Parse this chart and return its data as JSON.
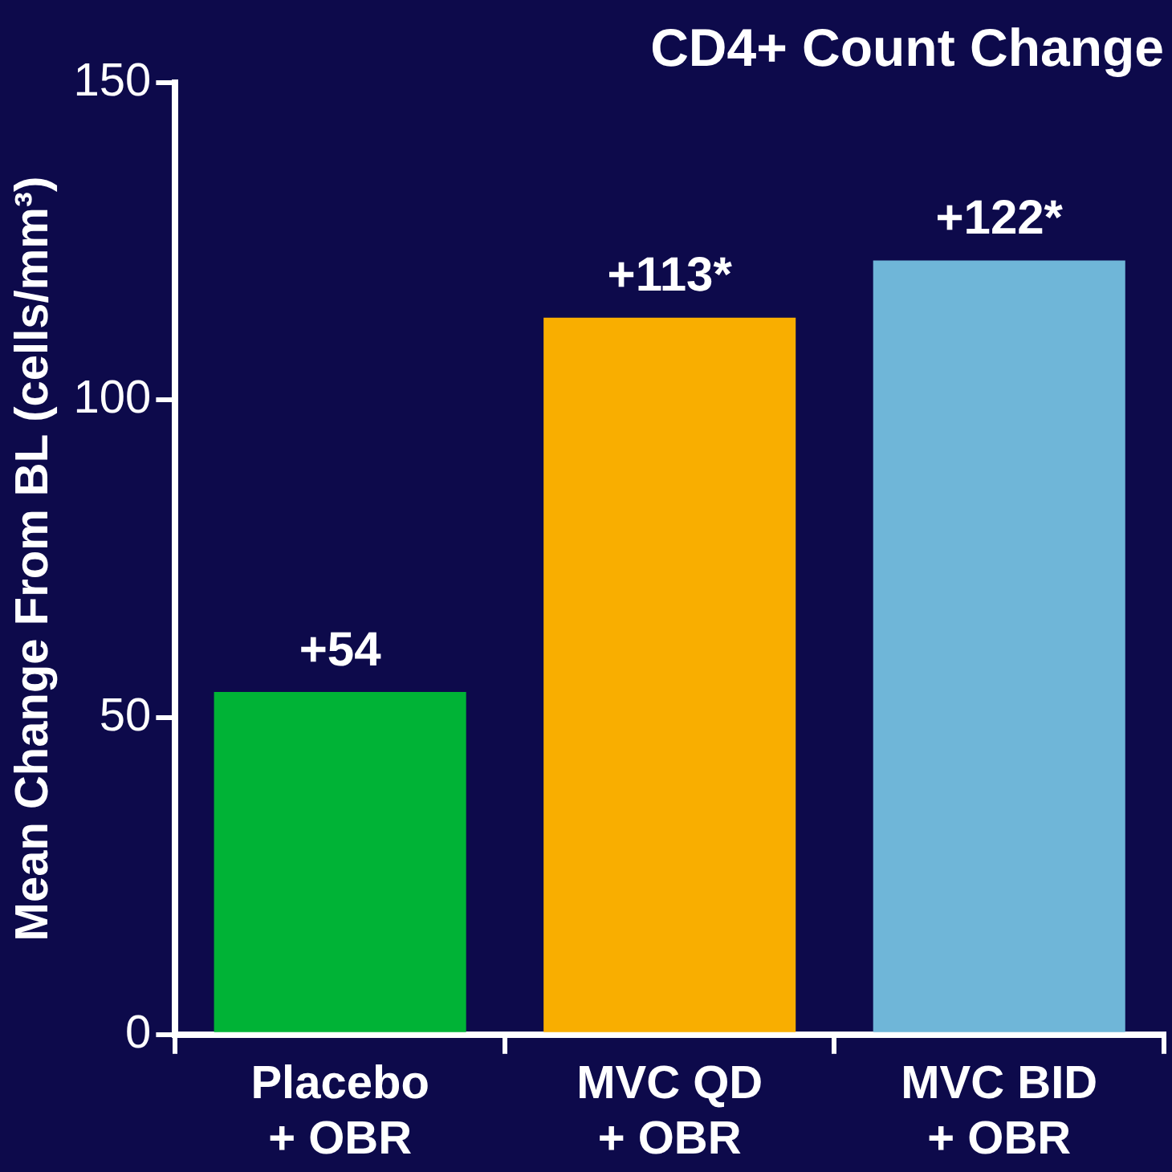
{
  "chart_data": {
    "type": "bar",
    "title": "CD4+ Count Change",
    "ylabel": "Mean Change From BL (cells/mm³)",
    "categories": [
      "Placebo\n+ OBR",
      "MVC QD\n+ OBR",
      "MVC BID\n+ OBR"
    ],
    "values": [
      54,
      113,
      122
    ],
    "colors": [
      "#00b336",
      "#f9ae00",
      "#6fb6d8"
    ],
    "value_labels": [
      "+54",
      "+113*",
      "+122*"
    ],
    "ylim": [
      0,
      150
    ],
    "yticks": [
      0,
      50,
      100,
      150
    ],
    "grid": false,
    "legend": false
  }
}
